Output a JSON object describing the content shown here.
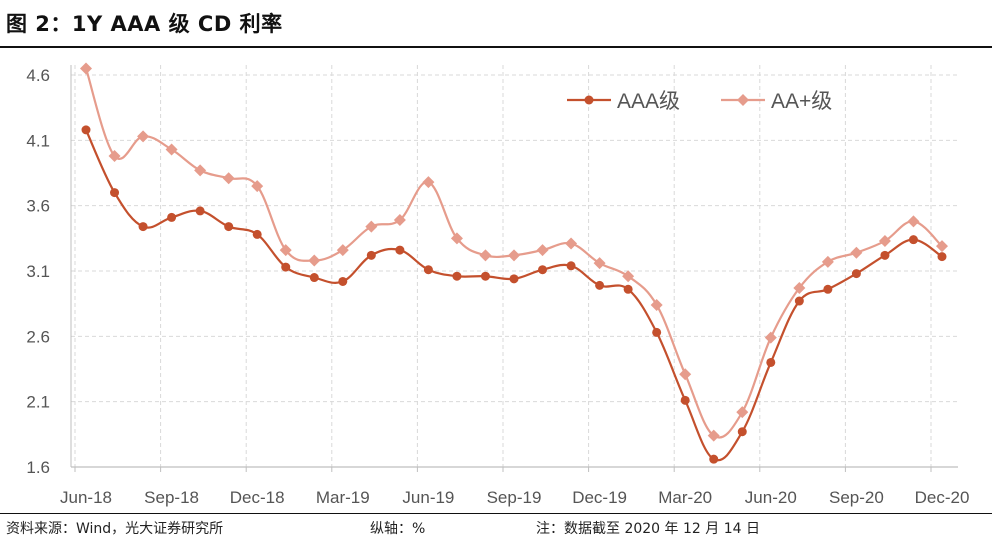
{
  "title": "图 2：1Y AAA 级 CD 利率",
  "footer": {
    "source": "资料来源：Wind，光大证券研究所",
    "axis_unit": "纵轴：%",
    "note": "注：数据截至 2020 年 12 月 14 日"
  },
  "colors": {
    "aaa": "#c4502d",
    "aa_plus": "#e69c8c",
    "grid": "#d9d9d9",
    "axis": "#bfbfbf"
  },
  "chart_data": {
    "type": "line",
    "title": "1Y AAA 级 CD 利率",
    "xlabel": "",
    "ylabel": "%",
    "ylim": [
      1.6,
      4.6
    ],
    "yticks": [
      "4.6",
      "4.1",
      "3.6",
      "3.1",
      "2.6",
      "2.1",
      "1.6"
    ],
    "ytick_values": [
      4.6,
      4.1,
      3.6,
      3.1,
      2.6,
      2.1,
      1.6
    ],
    "xticks": [
      {
        "label": "Jun-18",
        "index": 0
      },
      {
        "label": "Sep-18",
        "index": 3
      },
      {
        "label": "Dec-18",
        "index": 6
      },
      {
        "label": "Mar-19",
        "index": 9
      },
      {
        "label": "Jun-19",
        "index": 12
      },
      {
        "label": "Sep-19",
        "index": 15
      },
      {
        "label": "Dec-19",
        "index": 18
      },
      {
        "label": "Mar-20",
        "index": 21
      },
      {
        "label": "Jun-20",
        "index": 24
      },
      {
        "label": "Sep-20",
        "index": 27
      },
      {
        "label": "Dec-20",
        "index": 30
      }
    ],
    "grid": true,
    "legend_position": "top-right",
    "series": [
      {
        "name": "AAA级",
        "marker": "circle",
        "values": [
          4.18,
          3.7,
          3.44,
          3.51,
          3.56,
          3.44,
          3.38,
          3.13,
          3.05,
          3.02,
          3.22,
          3.26,
          3.11,
          3.06,
          3.06,
          3.04,
          3.11,
          3.14,
          2.99,
          2.96,
          2.63,
          2.11,
          1.66,
          1.87,
          2.4,
          2.87,
          2.96,
          3.08,
          3.22,
          3.34,
          3.21
        ]
      },
      {
        "name": "AA+级",
        "marker": "diamond",
        "values": [
          4.65,
          3.98,
          4.13,
          4.03,
          3.87,
          3.81,
          3.75,
          3.26,
          3.18,
          3.26,
          3.44,
          3.49,
          3.78,
          3.35,
          3.22,
          3.22,
          3.26,
          3.31,
          3.16,
          3.06,
          2.84,
          2.31,
          1.84,
          2.02,
          2.59,
          2.97,
          3.17,
          3.24,
          3.33,
          3.48,
          3.29
        ]
      }
    ]
  }
}
